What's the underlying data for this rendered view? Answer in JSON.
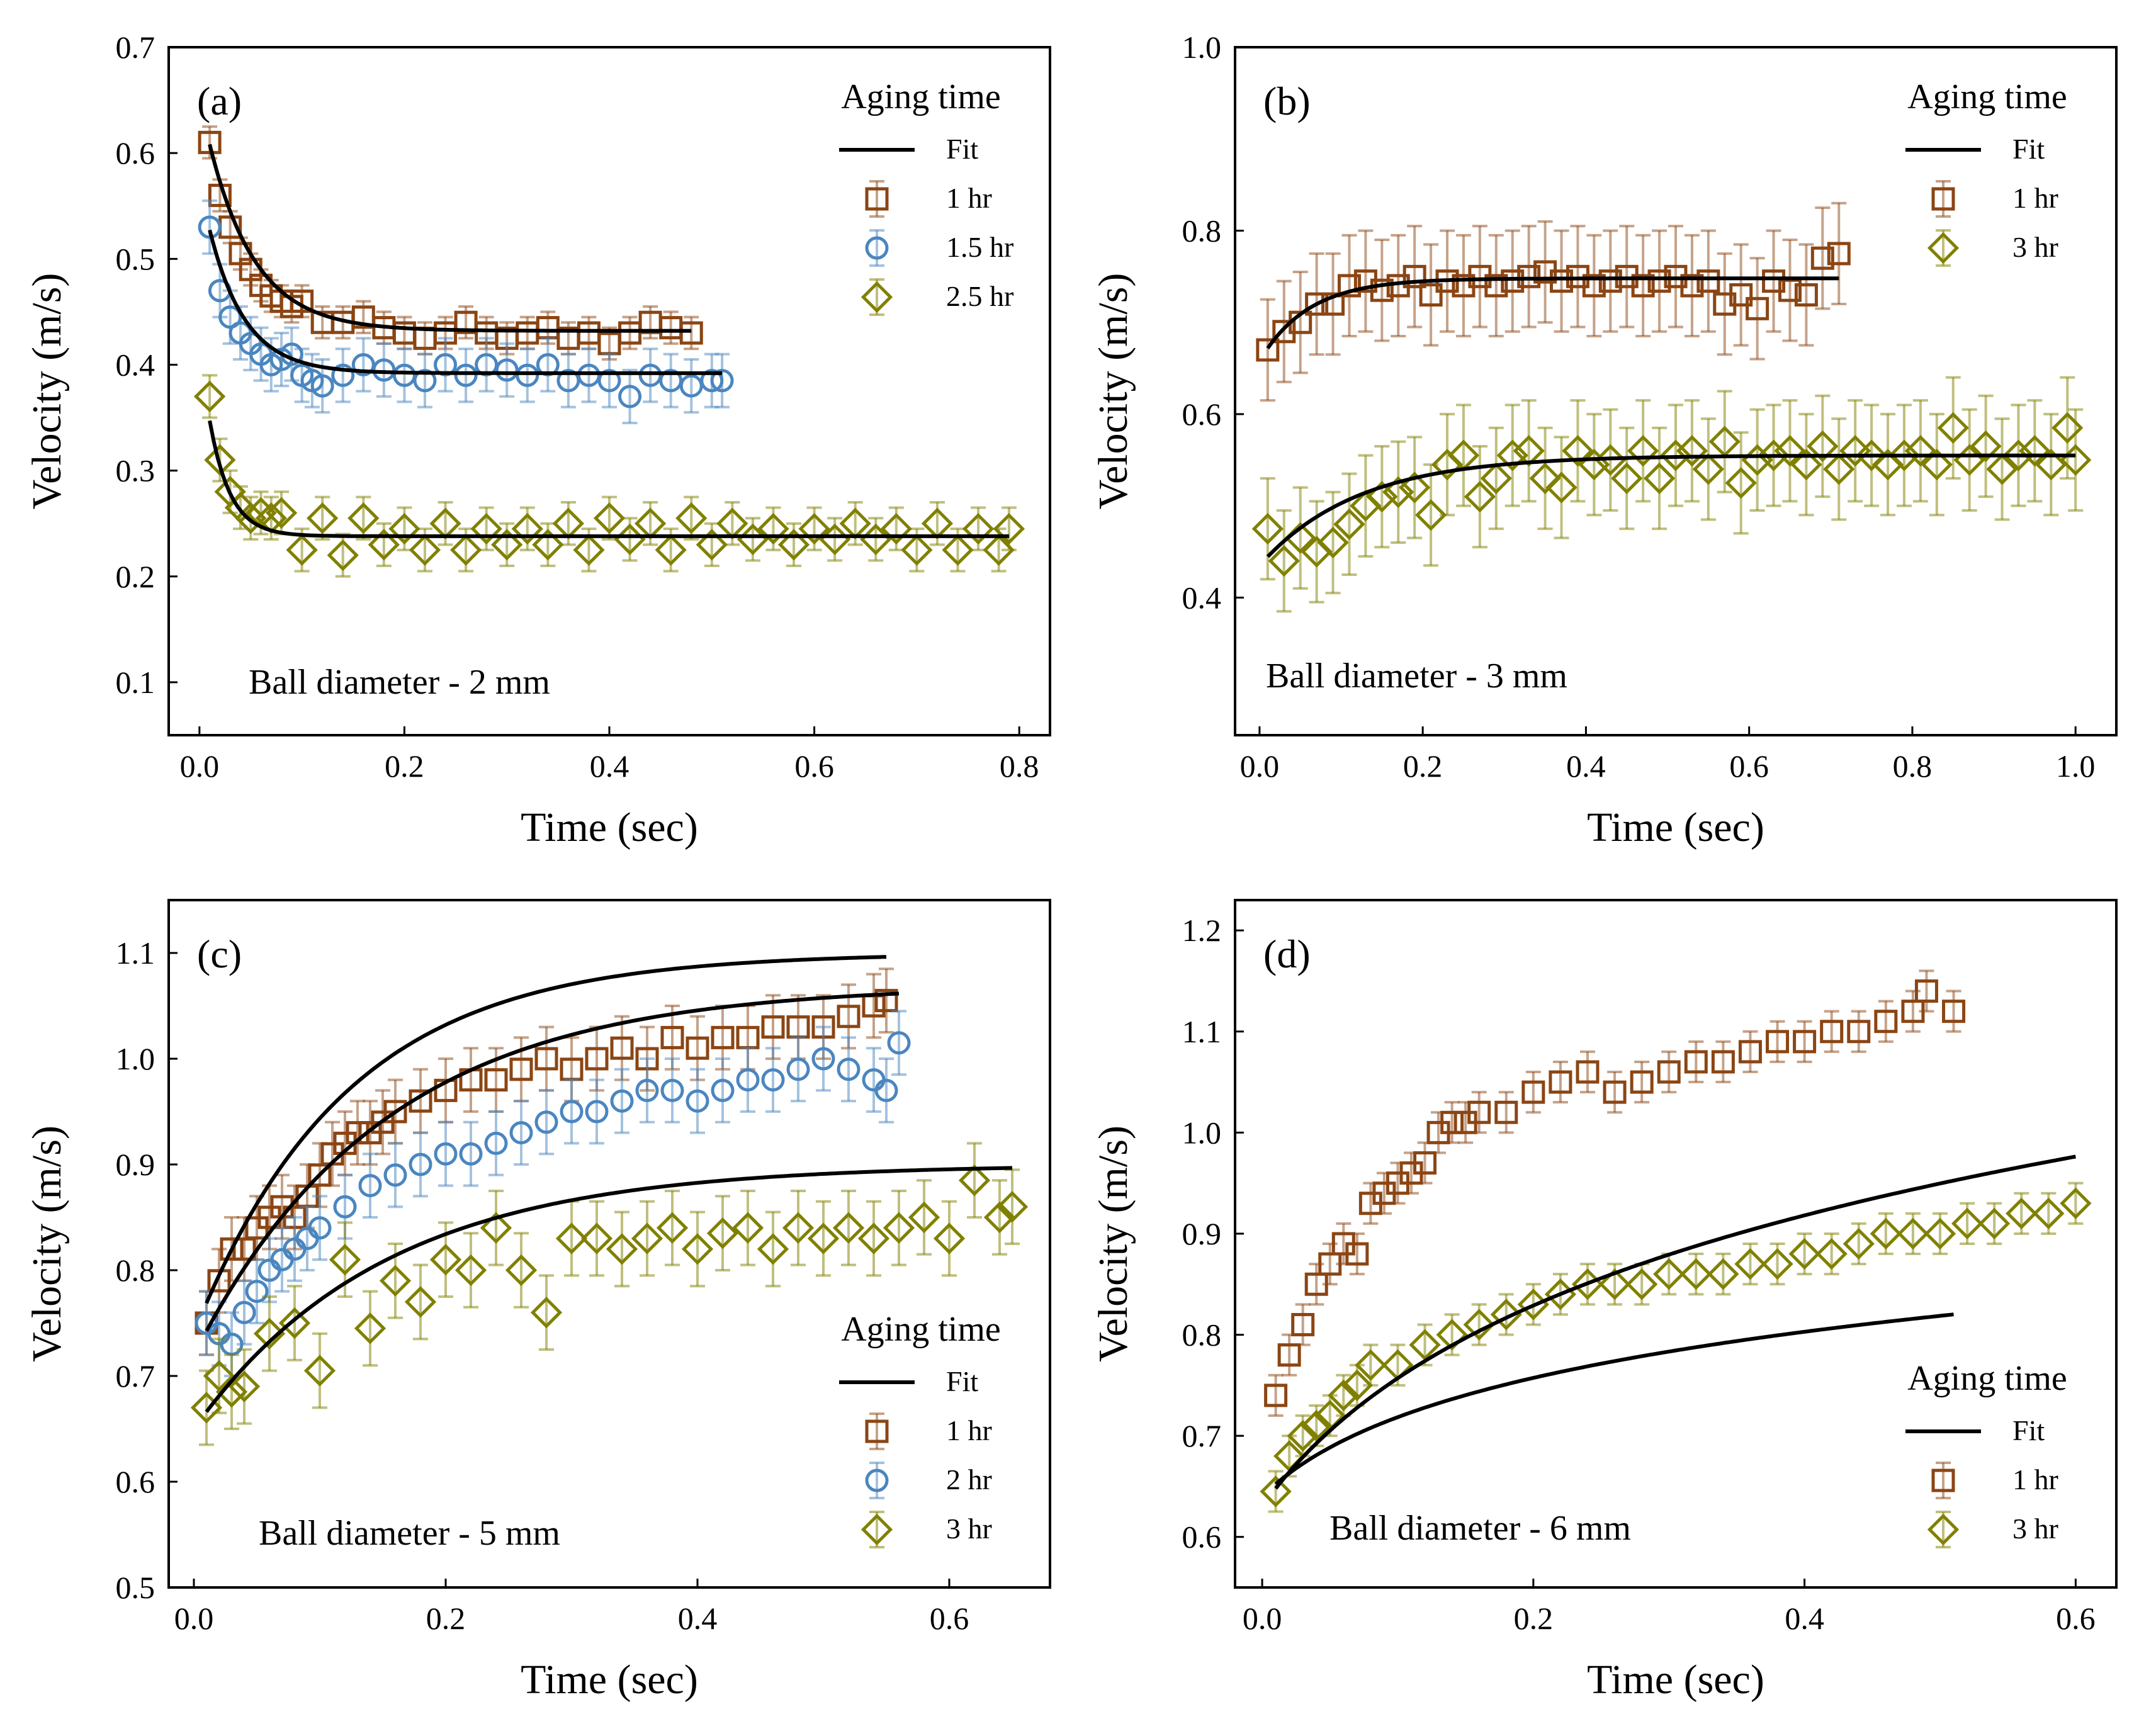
{
  "chart_data": [
    {
      "type": "scatter",
      "panel_label": "(a)",
      "xlabel": "Time (sec)",
      "ylabel": "Velocity (m/s)",
      "xlim": [
        -0.03,
        0.83
      ],
      "ylim": [
        0.05,
        0.7
      ],
      "xticks": [
        0.0,
        0.2,
        0.4,
        0.6,
        0.8
      ],
      "xtick_labels": [
        "0.0",
        "0.2",
        "0.4",
        "0.6",
        "0.8"
      ],
      "yticks": [
        0.1,
        0.2,
        0.3,
        0.4,
        0.5,
        0.6,
        0.7
      ],
      "ytick_labels": [
        "0.1",
        "0.2",
        "0.3",
        "0.4",
        "0.5",
        "0.6",
        "0.7"
      ],
      "annotation": "Ball diameter - 2 mm",
      "annotation_position": "bottom-left",
      "legend_title": "Aging time",
      "legend_position": "top-right",
      "fit_label": "Fit",
      "series": [
        {
          "name": "1 hr",
          "marker": "square",
          "color": "#8B4513",
          "x": [
            0.01,
            0.02,
            0.03,
            0.04,
            0.05,
            0.06,
            0.07,
            0.08,
            0.09,
            0.1,
            0.12,
            0.14,
            0.16,
            0.18,
            0.2,
            0.22,
            0.24,
            0.26,
            0.28,
            0.3,
            0.32,
            0.34,
            0.36,
            0.38,
            0.4,
            0.42,
            0.44,
            0.46,
            0.48
          ],
          "y": [
            0.61,
            0.56,
            0.53,
            0.505,
            0.49,
            0.475,
            0.465,
            0.46,
            0.455,
            0.46,
            0.44,
            0.44,
            0.445,
            0.435,
            0.43,
            0.425,
            0.43,
            0.44,
            0.43,
            0.425,
            0.43,
            0.435,
            0.425,
            0.43,
            0.42,
            0.43,
            0.44,
            0.435,
            0.43
          ],
          "yerr": 0.015,
          "fit": {
            "a": 0.432,
            "b": 0.22,
            "tau": 0.045
          }
        },
        {
          "name": "1.5 hr",
          "marker": "circle",
          "color": "#4a86c0",
          "x": [
            0.01,
            0.02,
            0.03,
            0.04,
            0.05,
            0.06,
            0.07,
            0.08,
            0.09,
            0.1,
            0.11,
            0.12,
            0.14,
            0.16,
            0.18,
            0.2,
            0.22,
            0.24,
            0.26,
            0.28,
            0.3,
            0.32,
            0.34,
            0.36,
            0.38,
            0.4,
            0.42,
            0.44,
            0.46,
            0.48,
            0.5,
            0.51
          ],
          "y": [
            0.53,
            0.47,
            0.445,
            0.43,
            0.42,
            0.41,
            0.4,
            0.405,
            0.41,
            0.39,
            0.385,
            0.38,
            0.39,
            0.4,
            0.395,
            0.39,
            0.385,
            0.4,
            0.39,
            0.4,
            0.395,
            0.39,
            0.4,
            0.385,
            0.39,
            0.385,
            0.37,
            0.39,
            0.385,
            0.38,
            0.385,
            0.385
          ],
          "yerr": 0.025,
          "fit": {
            "a": 0.392,
            "b": 0.18,
            "tau": 0.035
          }
        },
        {
          "name": "2.5 hr",
          "marker": "diamond",
          "color": "#808000",
          "x": [
            0.01,
            0.02,
            0.03,
            0.04,
            0.05,
            0.06,
            0.07,
            0.08,
            0.1,
            0.12,
            0.14,
            0.16,
            0.18,
            0.2,
            0.22,
            0.24,
            0.26,
            0.28,
            0.3,
            0.32,
            0.34,
            0.36,
            0.38,
            0.4,
            0.42,
            0.44,
            0.46,
            0.48,
            0.5,
            0.52,
            0.54,
            0.56,
            0.58,
            0.6,
            0.62,
            0.64,
            0.66,
            0.68,
            0.7,
            0.72,
            0.74,
            0.76,
            0.78,
            0.79
          ],
          "y": [
            0.37,
            0.31,
            0.28,
            0.265,
            0.255,
            0.26,
            0.255,
            0.26,
            0.225,
            0.255,
            0.22,
            0.255,
            0.23,
            0.245,
            0.225,
            0.25,
            0.225,
            0.245,
            0.23,
            0.245,
            0.23,
            0.25,
            0.225,
            0.255,
            0.235,
            0.25,
            0.225,
            0.255,
            0.23,
            0.25,
            0.235,
            0.245,
            0.23,
            0.245,
            0.235,
            0.25,
            0.235,
            0.245,
            0.225,
            0.25,
            0.225,
            0.245,
            0.225,
            0.245
          ],
          "yerr": 0.02,
          "fit": {
            "a": 0.238,
            "b": 0.18,
            "tau": 0.02
          }
        }
      ]
    },
    {
      "type": "scatter",
      "panel_label": "(b)",
      "xlabel": "Time (sec)",
      "ylabel": "Velocity (m/s)",
      "xlim": [
        -0.03,
        1.05
      ],
      "ylim": [
        0.25,
        1.0
      ],
      "xticks": [
        0.0,
        0.2,
        0.4,
        0.6,
        0.8,
        1.0
      ],
      "xtick_labels": [
        "0.0",
        "0.2",
        "0.4",
        "0.6",
        "0.8",
        "1.0"
      ],
      "yticks": [
        0.4,
        0.6,
        0.8,
        1.0
      ],
      "ytick_labels": [
        "0.4",
        "0.6",
        "0.8",
        "1.0"
      ],
      "annotation": "Ball diameter - 3 mm",
      "annotation_position": "bottom-left",
      "legend_title": "Aging time",
      "legend_position": "top-right",
      "fit_label": "Fit",
      "series": [
        {
          "name": "1 hr",
          "marker": "square",
          "color": "#8B4513",
          "x": [
            0.01,
            0.03,
            0.05,
            0.07,
            0.09,
            0.11,
            0.13,
            0.15,
            0.17,
            0.19,
            0.21,
            0.23,
            0.25,
            0.27,
            0.29,
            0.31,
            0.33,
            0.35,
            0.37,
            0.39,
            0.41,
            0.43,
            0.45,
            0.47,
            0.49,
            0.51,
            0.53,
            0.55,
            0.57,
            0.59,
            0.61,
            0.63,
            0.65,
            0.67,
            0.69,
            0.71
          ],
          "y": [
            0.67,
            0.69,
            0.7,
            0.72,
            0.72,
            0.74,
            0.745,
            0.735,
            0.74,
            0.75,
            0.73,
            0.745,
            0.74,
            0.75,
            0.74,
            0.745,
            0.75,
            0.755,
            0.745,
            0.75,
            0.74,
            0.745,
            0.75,
            0.74,
            0.745,
            0.75,
            0.74,
            0.745,
            0.72,
            0.73,
            0.715,
            0.745,
            0.735,
            0.73,
            0.77,
            0.775
          ],
          "yerr": 0.055,
          "fit": {
            "a": 0.748,
            "b": 0.09,
            "tau": 0.06
          }
        },
        {
          "name": "3 hr",
          "marker": "diamond",
          "color": "#808000",
          "x": [
            0.01,
            0.03,
            0.05,
            0.07,
            0.09,
            0.11,
            0.13,
            0.15,
            0.17,
            0.19,
            0.21,
            0.23,
            0.25,
            0.27,
            0.29,
            0.31,
            0.33,
            0.35,
            0.37,
            0.39,
            0.41,
            0.43,
            0.45,
            0.47,
            0.49,
            0.51,
            0.53,
            0.55,
            0.57,
            0.59,
            0.61,
            0.63,
            0.65,
            0.67,
            0.69,
            0.71,
            0.73,
            0.75,
            0.77,
            0.79,
            0.81,
            0.83,
            0.85,
            0.87,
            0.89,
            0.91,
            0.93,
            0.95,
            0.97,
            0.99,
            1.0
          ],
          "y": [
            0.475,
            0.44,
            0.465,
            0.45,
            0.46,
            0.48,
            0.5,
            0.51,
            0.515,
            0.52,
            0.49,
            0.545,
            0.555,
            0.51,
            0.53,
            0.555,
            0.56,
            0.53,
            0.52,
            0.56,
            0.545,
            0.55,
            0.53,
            0.56,
            0.53,
            0.555,
            0.56,
            0.54,
            0.57,
            0.525,
            0.55,
            0.555,
            0.56,
            0.545,
            0.565,
            0.54,
            0.56,
            0.555,
            0.545,
            0.555,
            0.56,
            0.545,
            0.585,
            0.55,
            0.565,
            0.54,
            0.555,
            0.56,
            0.545,
            0.585,
            0.55
          ],
          "yerr": 0.055,
          "fit": {
            "a": 0.555,
            "b": 0.12,
            "tau": 0.12
          }
        }
      ]
    },
    {
      "type": "scatter",
      "panel_label": "(c)",
      "xlabel": "Time (sec)",
      "ylabel": "Velocity (m/s)",
      "xlim": [
        -0.02,
        0.68
      ],
      "ylim": [
        0.5,
        1.15
      ],
      "xticks": [
        0.0,
        0.2,
        0.4,
        0.6
      ],
      "xtick_labels": [
        "0.0",
        "0.2",
        "0.4",
        "0.6"
      ],
      "yticks": [
        0.5,
        0.6,
        0.7,
        0.8,
        0.9,
        1.0,
        1.1
      ],
      "ytick_labels": [
        "0.5",
        "0.6",
        "0.7",
        "0.8",
        "0.9",
        "1.0",
        "1.1"
      ],
      "annotation": "Ball diameter - 5 mm",
      "annotation_position": "bottom-left",
      "legend_title": "Aging time",
      "legend_position": "bottom-right",
      "fit_label": "Fit",
      "series": [
        {
          "name": "1 hr",
          "marker": "square",
          "color": "#8B4513",
          "x": [
            0.01,
            0.02,
            0.03,
            0.04,
            0.05,
            0.06,
            0.07,
            0.08,
            0.09,
            0.1,
            0.11,
            0.12,
            0.13,
            0.14,
            0.15,
            0.16,
            0.18,
            0.2,
            0.22,
            0.24,
            0.26,
            0.28,
            0.3,
            0.32,
            0.34,
            0.36,
            0.38,
            0.4,
            0.42,
            0.44,
            0.46,
            0.48,
            0.5,
            0.52,
            0.54,
            0.55
          ],
          "y": [
            0.75,
            0.79,
            0.82,
            0.82,
            0.84,
            0.85,
            0.86,
            0.85,
            0.87,
            0.89,
            0.91,
            0.92,
            0.93,
            0.93,
            0.94,
            0.95,
            0.96,
            0.97,
            0.98,
            0.98,
            0.99,
            1.0,
            0.99,
            1.0,
            1.01,
            1.0,
            1.02,
            1.01,
            1.02,
            1.02,
            1.03,
            1.03,
            1.03,
            1.04,
            1.05,
            1.055
          ],
          "yerr": 0.03,
          "fit": {
            "v0": 0.74,
            "vinf": 1.1,
            "tau": 0.12
          }
        },
        {
          "name": "2 hr",
          "marker": "circle",
          "color": "#4a86c0",
          "x": [
            0.01,
            0.02,
            0.03,
            0.04,
            0.05,
            0.06,
            0.07,
            0.08,
            0.09,
            0.1,
            0.12,
            0.14,
            0.16,
            0.18,
            0.2,
            0.22,
            0.24,
            0.26,
            0.28,
            0.3,
            0.32,
            0.34,
            0.36,
            0.38,
            0.4,
            0.42,
            0.44,
            0.46,
            0.48,
            0.5,
            0.52,
            0.54,
            0.55,
            0.56
          ],
          "y": [
            0.75,
            0.74,
            0.73,
            0.76,
            0.78,
            0.8,
            0.81,
            0.82,
            0.83,
            0.84,
            0.86,
            0.88,
            0.89,
            0.9,
            0.91,
            0.91,
            0.92,
            0.93,
            0.94,
            0.95,
            0.95,
            0.96,
            0.97,
            0.97,
            0.96,
            0.97,
            0.98,
            0.98,
            0.99,
            1.0,
            0.99,
            0.98,
            0.97,
            1.015
          ],
          "yerr": 0.03,
          "fit": {
            "v0": 0.72,
            "vinf": 1.07,
            "tau": 0.15
          }
        },
        {
          "name": "3 hr",
          "marker": "diamond",
          "color": "#808000",
          "x": [
            0.01,
            0.02,
            0.03,
            0.04,
            0.06,
            0.08,
            0.1,
            0.12,
            0.14,
            0.16,
            0.18,
            0.2,
            0.22,
            0.24,
            0.26,
            0.28,
            0.3,
            0.32,
            0.34,
            0.36,
            0.38,
            0.4,
            0.42,
            0.44,
            0.46,
            0.48,
            0.5,
            0.52,
            0.54,
            0.56,
            0.58,
            0.6,
            0.62,
            0.64,
            0.65
          ],
          "y": [
            0.67,
            0.7,
            0.685,
            0.69,
            0.74,
            0.75,
            0.705,
            0.81,
            0.745,
            0.79,
            0.77,
            0.81,
            0.8,
            0.84,
            0.8,
            0.76,
            0.83,
            0.83,
            0.82,
            0.83,
            0.84,
            0.82,
            0.835,
            0.84,
            0.82,
            0.84,
            0.83,
            0.84,
            0.83,
            0.84,
            0.85,
            0.83,
            0.885,
            0.85,
            0.86
          ],
          "yerr": 0.035,
          "fit": {
            "v0": 0.65,
            "vinf": 0.9,
            "tau": 0.15
          }
        }
      ]
    },
    {
      "type": "scatter",
      "panel_label": "(d)",
      "xlabel": "Time (sec)",
      "ylabel": "Velocity (m/s)",
      "xlim": [
        -0.02,
        0.63
      ],
      "ylim": [
        0.55,
        1.23
      ],
      "xticks": [
        0.0,
        0.2,
        0.4,
        0.6
      ],
      "xtick_labels": [
        "0.0",
        "0.2",
        "0.4",
        "0.6"
      ],
      "yticks": [
        0.6,
        0.7,
        0.8,
        0.9,
        1.0,
        1.1,
        1.2
      ],
      "ytick_labels": [
        "0.6",
        "0.7",
        "0.8",
        "0.9",
        "1.0",
        "1.1",
        "1.2"
      ],
      "annotation": "Ball diameter - 6 mm",
      "annotation_position": "bottom-left",
      "legend_title": "Aging time",
      "legend_position": "bottom-right",
      "fit_label": "Fit",
      "series": [
        {
          "name": "1 hr",
          "marker": "square",
          "color": "#8B4513",
          "x": [
            0.01,
            0.02,
            0.03,
            0.04,
            0.05,
            0.06,
            0.07,
            0.08,
            0.09,
            0.1,
            0.11,
            0.12,
            0.13,
            0.14,
            0.15,
            0.16,
            0.18,
            0.2,
            0.22,
            0.24,
            0.26,
            0.28,
            0.3,
            0.32,
            0.34,
            0.36,
            0.38,
            0.4,
            0.42,
            0.44,
            0.46,
            0.48,
            0.49,
            0.51
          ],
          "y": [
            0.74,
            0.78,
            0.81,
            0.85,
            0.87,
            0.89,
            0.88,
            0.93,
            0.94,
            0.95,
            0.96,
            0.97,
            1.0,
            1.01,
            1.01,
            1.02,
            1.02,
            1.04,
            1.05,
            1.06,
            1.04,
            1.05,
            1.06,
            1.07,
            1.07,
            1.08,
            1.09,
            1.09,
            1.1,
            1.1,
            1.11,
            1.12,
            1.14,
            1.12
          ],
          "yerr": 0.02,
          "fit": {
            "a": 0.64,
            "b": 0.08,
            "tau": 0.06,
            "c": 0.55,
            "d": 0.35
          }
        },
        {
          "name": "3 hr",
          "marker": "diamond",
          "color": "#808000",
          "x": [
            0.01,
            0.02,
            0.03,
            0.04,
            0.05,
            0.06,
            0.07,
            0.08,
            0.1,
            0.12,
            0.14,
            0.16,
            0.18,
            0.2,
            0.22,
            0.24,
            0.26,
            0.28,
            0.3,
            0.32,
            0.34,
            0.36,
            0.38,
            0.4,
            0.42,
            0.44,
            0.46,
            0.48,
            0.5,
            0.52,
            0.54,
            0.56,
            0.58,
            0.6
          ],
          "y": [
            0.645,
            0.68,
            0.7,
            0.71,
            0.72,
            0.74,
            0.75,
            0.77,
            0.77,
            0.79,
            0.8,
            0.81,
            0.82,
            0.83,
            0.84,
            0.85,
            0.85,
            0.85,
            0.86,
            0.86,
            0.86,
            0.87,
            0.87,
            0.88,
            0.88,
            0.89,
            0.9,
            0.9,
            0.9,
            0.91,
            0.91,
            0.92,
            0.92,
            0.93
          ],
          "yerr": 0.02,
          "fit": {
            "a": 0.63,
            "b": 0.17,
            "tau": 0.09,
            "c": 0.54,
            "d": 0.27
          }
        }
      ]
    }
  ]
}
